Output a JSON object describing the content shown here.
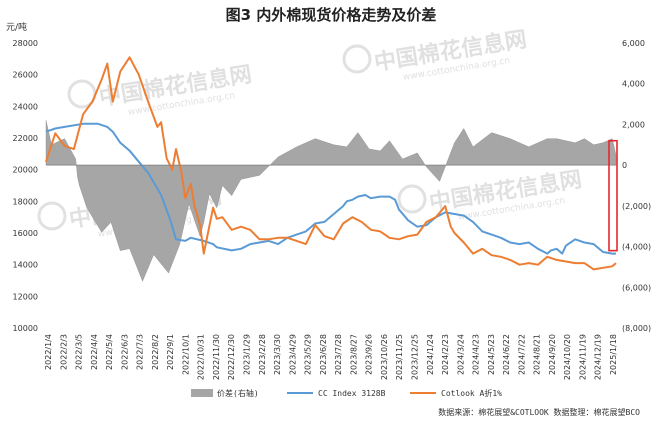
{
  "chart_data": {
    "type": "line",
    "title": "图3  内外棉现货价格走势及价差",
    "y_unit_label": "元/吨",
    "ylim_left": [
      10000,
      28000
    ],
    "ylim_right": [
      -8000,
      6000
    ],
    "yticks_left": [
      "10000",
      "12000",
      "14000",
      "16000",
      "18000",
      "20000",
      "22000",
      "24000",
      "26000",
      "28000"
    ],
    "yticks_right": [
      "(8,000)",
      "(6,000)",
      "(4,000)",
      "(2,000)",
      "0",
      "2,000",
      "4,000",
      "6,000"
    ],
    "x_tick_labels": [
      "2022/1/4",
      "2022/2/3",
      "2022/3/5",
      "2022/4/4",
      "2022/5/4",
      "2022/6/3",
      "2022/7/3",
      "2022/8/2",
      "2022/9/1",
      "2022/10/1",
      "2022/10/31",
      "2022/11/30",
      "2022/12/30",
      "2023/1/29",
      "2023/2/28",
      "2023/3/30",
      "2023/4/29",
      "2023/5/29",
      "2023/6/28",
      "2023/7/28",
      "2023/8/27",
      "2023/9/26",
      "2023/10/26",
      "2023/11/25",
      "2023/12/25",
      "2024/1/24",
      "2024/2/23",
      "2024/3/24",
      "2024/4/23",
      "2024/5/23",
      "2024/6/22",
      "2024/7/22",
      "2024/8/21",
      "2024/9/20",
      "2024/10/20",
      "2024/11/19",
      "2024/12/19",
      "2025/1/18"
    ],
    "series": [
      {
        "name": "价差(右轴)",
        "kind": "area",
        "axis": "right",
        "color": "#a6a6a6",
        "x": [
          0,
          0.03,
          0.1,
          0.16,
          0.17,
          0.18,
          0.22,
          0.3,
          0.35,
          0.4,
          0.45,
          0.52,
          0.58,
          0.66,
          0.72,
          0.77,
          0.83,
          0.85,
          0.88,
          0.92,
          0.95,
          1.0,
          1.05,
          1.15,
          1.25,
          1.35,
          1.45,
          1.55,
          1.62,
          1.68,
          1.74,
          1.8,
          1.85,
          1.92,
          2.0,
          2.05,
          2.12,
          2.2,
          2.25,
          2.3,
          2.4,
          2.5,
          2.6,
          2.7,
          2.75,
          2.8,
          2.85,
          2.9,
          2.95,
          3.0,
          3.05,
          3.07
        ],
        "y": [
          2200,
          1000,
          1300,
          300,
          -600,
          -1000,
          -2100,
          -3300,
          -2800,
          -4200,
          -4100,
          -5700,
          -4400,
          -5300,
          -3900,
          -1900,
          -3500,
          -2800,
          -1400,
          -2100,
          -1000,
          -1500,
          -700,
          -500,
          400,
          900,
          1300,
          1000,
          900,
          1600,
          800,
          700,
          1200,
          300,
          600,
          -100,
          -800,
          1100,
          1800,
          900,
          1600,
          1300,
          900,
          1300,
          1300,
          1200,
          1100,
          1300,
          1000,
          1100,
          1300,
          500
        ]
      },
      {
        "name": "CC Index 3128B",
        "kind": "line",
        "axis": "left",
        "color": "#5b9bd5",
        "x": [
          0,
          0.05,
          0.1,
          0.2,
          0.28,
          0.33,
          0.36,
          0.4,
          0.45,
          0.5,
          0.55,
          0.62,
          0.67,
          0.7,
          0.75,
          0.78,
          0.85,
          0.9,
          0.92,
          1.0,
          1.05,
          1.1,
          1.15,
          1.2,
          1.25,
          1.3,
          1.35,
          1.4,
          1.45,
          1.5,
          1.55,
          1.6,
          1.62,
          1.65,
          1.68,
          1.72,
          1.75,
          1.8,
          1.85,
          1.88,
          1.9,
          1.95,
          2.0,
          2.05,
          2.08,
          2.1,
          2.15,
          2.2,
          2.25,
          2.3,
          2.35,
          2.4,
          2.45,
          2.5,
          2.55,
          2.6,
          2.65,
          2.7,
          2.72,
          2.75,
          2.78,
          2.8,
          2.85,
          2.9,
          2.95,
          3.0,
          3.05,
          3.07
        ],
        "y": [
          22400,
          22600,
          22700,
          22900,
          22900,
          22700,
          22400,
          21700,
          21200,
          20500,
          19800,
          18400,
          16800,
          15600,
          15500,
          15700,
          15500,
          15300,
          15100,
          14900,
          15000,
          15300,
          15400,
          15500,
          15300,
          15700,
          15900,
          16100,
          16600,
          16700,
          17200,
          17700,
          18000,
          18100,
          18300,
          18400,
          18200,
          18300,
          18300,
          18100,
          17500,
          16800,
          16400,
          16500,
          16800,
          17000,
          17300,
          17200,
          17100,
          16700,
          16100,
          15900,
          15700,
          15400,
          15300,
          15400,
          15000,
          14700,
          14900,
          15000,
          14700,
          15200,
          15600,
          15400,
          15300,
          14800,
          14700,
          14700
        ]
      },
      {
        "name": "Cotlook A折1%",
        "kind": "line",
        "axis": "left",
        "color": "#ed7d31",
        "x": [
          0,
          0.05,
          0.1,
          0.15,
          0.2,
          0.25,
          0.3,
          0.33,
          0.36,
          0.4,
          0.45,
          0.5,
          0.55,
          0.6,
          0.62,
          0.65,
          0.68,
          0.7,
          0.73,
          0.75,
          0.78,
          0.8,
          0.83,
          0.85,
          0.9,
          0.92,
          0.95,
          1.0,
          1.05,
          1.1,
          1.15,
          1.2,
          1.25,
          1.3,
          1.35,
          1.4,
          1.45,
          1.5,
          1.55,
          1.6,
          1.65,
          1.7,
          1.75,
          1.8,
          1.85,
          1.9,
          1.95,
          2.0,
          2.05,
          2.1,
          2.15,
          2.18,
          2.2,
          2.25,
          2.3,
          2.35,
          2.4,
          2.45,
          2.5,
          2.55,
          2.6,
          2.65,
          2.7,
          2.75,
          2.8,
          2.85,
          2.9,
          2.95,
          3.0,
          3.05,
          3.07
        ],
        "y": [
          20500,
          22300,
          21500,
          21300,
          23500,
          24300,
          25700,
          26700,
          24300,
          26200,
          27100,
          26000,
          24300,
          22700,
          23000,
          20700,
          20000,
          21300,
          19800,
          18200,
          19100,
          17700,
          16500,
          14700,
          17600,
          16900,
          17000,
          16200,
          16400,
          16200,
          15600,
          15600,
          15700,
          15700,
          15500,
          15300,
          16500,
          15800,
          15600,
          16600,
          17000,
          16700,
          16200,
          16100,
          15700,
          15600,
          15800,
          15900,
          16700,
          17000,
          17700,
          16400,
          16000,
          15400,
          14700,
          15000,
          14600,
          14500,
          14300,
          14000,
          14100,
          14000,
          14500,
          14300,
          14200,
          14100,
          14100,
          13700,
          13800,
          13900,
          14100
        ]
      }
    ],
    "source_note": "数据来源：棉花展望&COTLOOK  数据整理：棉花展望BCO",
    "watermark": {
      "text": "中国棉花信息网",
      "url": "www.cottonchina.org.cn"
    },
    "annotation": {
      "type": "red-rectangle",
      "axis": "right",
      "range": [
        -4200,
        1200
      ],
      "color": "#e8262a"
    },
    "grid": false,
    "legend_position": "bottom"
  }
}
